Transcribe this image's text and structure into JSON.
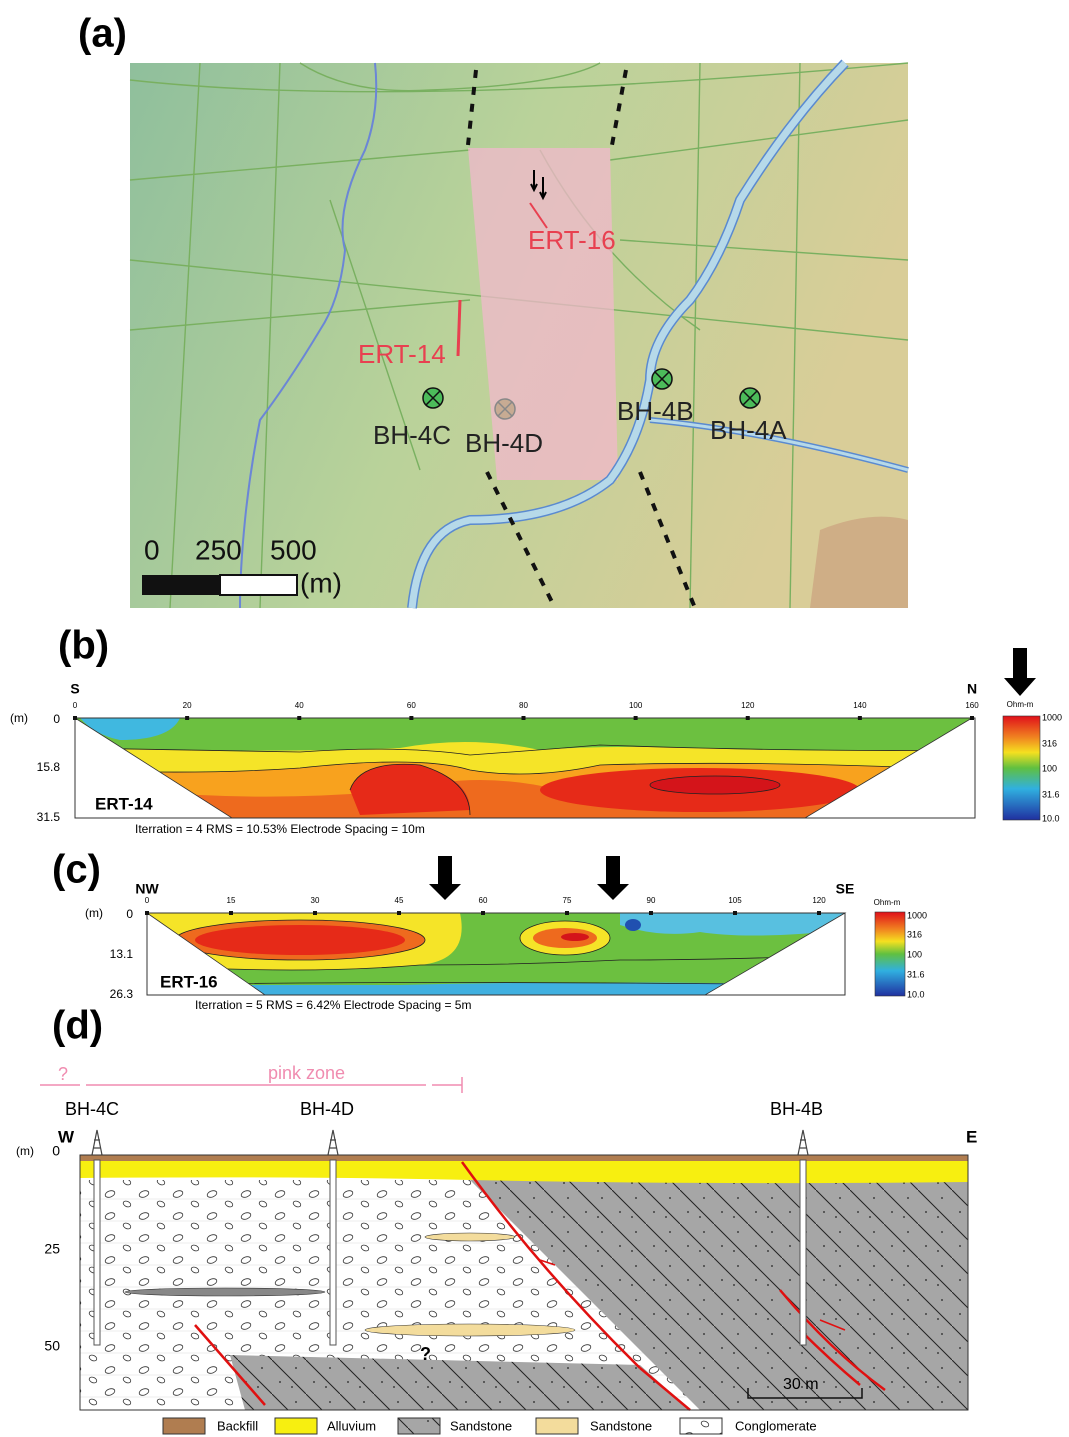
{
  "panel_a": {
    "label": "(a)",
    "profiles": [
      "ERT-16",
      "ERT-14"
    ],
    "boreholes": [
      "BH-4C",
      "BH-4D",
      "BH-4B",
      "BH-4A"
    ],
    "scale_ticks": [
      "0",
      "250",
      "500"
    ],
    "scale_unit": "(m)"
  },
  "panel_b": {
    "label": "(b)",
    "start": "S",
    "end": "N",
    "xticks": [
      0,
      20,
      40,
      60,
      80,
      100,
      120,
      140,
      160
    ],
    "depth_unit": "(m)",
    "depth_ticks": [
      "0",
      "15.8",
      "31.5"
    ],
    "profile": "ERT-14",
    "caption": "Iterration = 4  RMS = 10.53%  Electrode Spacing = 10m",
    "colorbar_unit": "Ohm-m",
    "colorbar_ticks": [
      "1000",
      "316",
      "100",
      "31.6",
      "10.0"
    ]
  },
  "panel_c": {
    "label": "(c)",
    "start": "NW",
    "end": "SE",
    "xticks": [
      0,
      15,
      30,
      45,
      60,
      75,
      90,
      105,
      120
    ],
    "depth_unit": "(m)",
    "depth_ticks": [
      "0",
      "13.1",
      "26.3"
    ],
    "profile": "ERT-16",
    "caption": "Iterration = 5  RMS = 6.42%  Electrode Spacing = 5m",
    "colorbar_unit": "Ohm-m",
    "colorbar_ticks": [
      "1000",
      "316",
      "100",
      "31.6",
      "10.0"
    ]
  },
  "panel_d": {
    "label": "(d)",
    "zone_query": "?",
    "zone": "pink zone",
    "boreholes": [
      "BH-4C",
      "BH-4D",
      "BH-4B"
    ],
    "west": "W",
    "east": "E",
    "depth_unit": "(m)",
    "depth_ticks": [
      "0",
      "25",
      "50"
    ],
    "unknown": "?",
    "scale": "30 m",
    "legend": [
      "Backfill",
      "Alluvium",
      "Sandstone",
      "Sandstone",
      "Conglomerate"
    ]
  }
}
